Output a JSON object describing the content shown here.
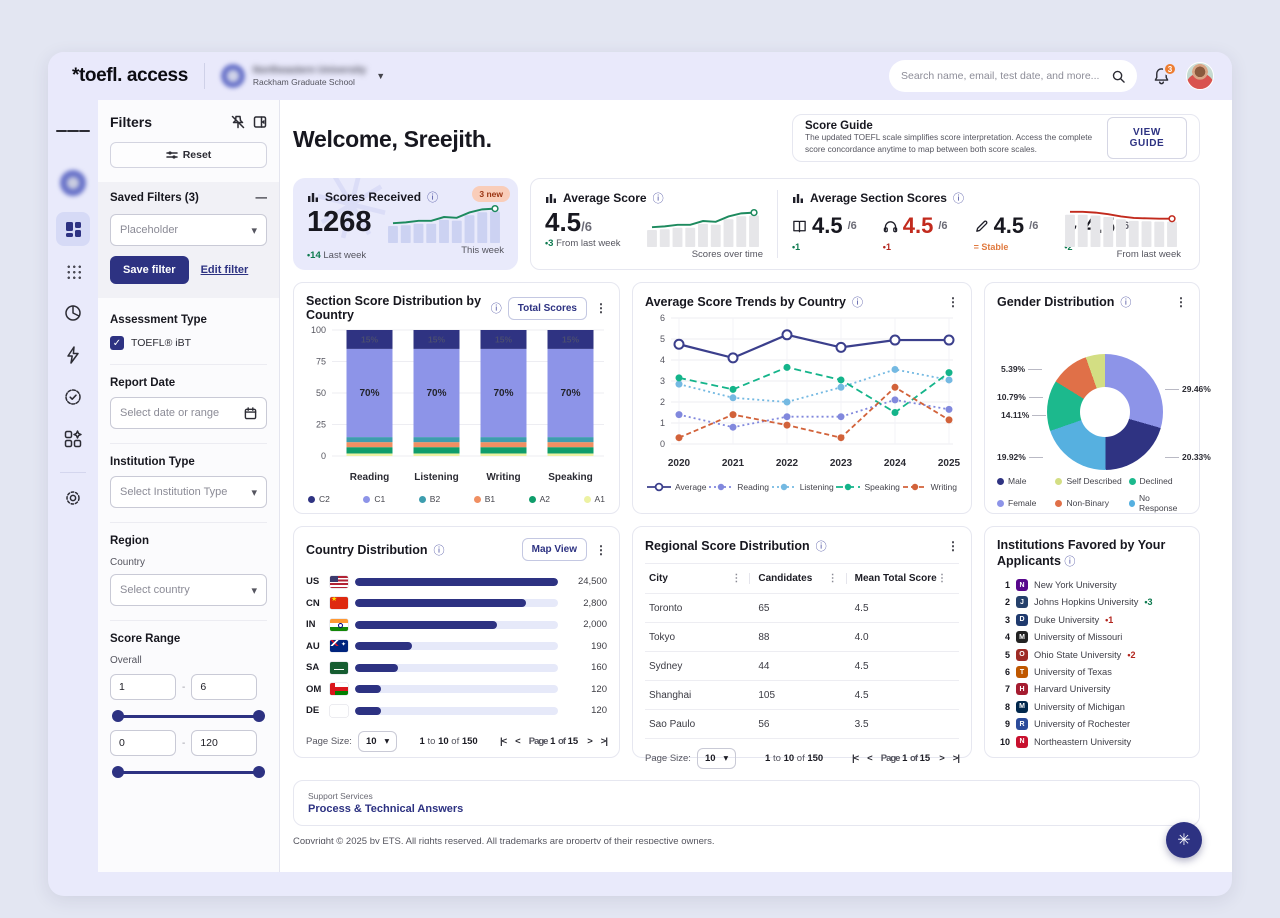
{
  "app": {
    "logo": "*toefl. access",
    "org": {
      "name": "Northeastern University",
      "subtitle": "Rackham Graduate School"
    },
    "search_placeholder": "Search name, email, test date, and more...",
    "notification_count": "3"
  },
  "sidebar": {
    "title": "Filters",
    "reset_label": "Reset",
    "saved_filters_label": "Saved Filters (3)",
    "saved_filter_placeholder": "Placeholder",
    "save_filter_label": "Save filter",
    "edit_filter_label": "Edit filter",
    "assessment_type_label": "Assessment Type",
    "assessment_checkbox_label": "TOEFL® iBT",
    "report_date_label": "Report Date",
    "report_date_placeholder": "Select date or range",
    "institution_type_label": "Institution Type",
    "institution_type_placeholder": "Select Institution Type",
    "region_label": "Region",
    "country_label": "Country",
    "country_placeholder": "Select country",
    "score_range_label": "Score Range",
    "overall_label": "Overall",
    "separator": "-",
    "range1": {
      "min": "1",
      "max": "6"
    },
    "range2": {
      "min": "0",
      "max": "120"
    }
  },
  "main": {
    "welcome": "Welcome, Sreejith.",
    "score_guide": {
      "title": "Score Guide",
      "description": "The updated TOEFL scale simplifies score interpretation. Access the complete score concordance anytime to map between both score scales.",
      "button": "VIEW GUIDE"
    },
    "kpis": {
      "scores_received": {
        "title": "Scores Received",
        "badge": "3 new",
        "value": "1268",
        "delta": "14",
        "delta_label": "Last week",
        "spark_label": "This week",
        "spark": [
          2.6,
          2.7,
          2.9,
          2.9,
          3.4,
          3.3,
          4.0,
          4.4,
          4.5
        ]
      },
      "average_score": {
        "title": "Average Score",
        "value": "4.5",
        "denom": "/6",
        "delta": "3",
        "delta_label": "From last week",
        "spark_label": "Scores over time",
        "spark": [
          2.6,
          2.7,
          2.9,
          2.9,
          3.4,
          3.3,
          4.0,
          4.4,
          4.5
        ]
      },
      "section_scores": {
        "title": "Average Section Scores",
        "spark_label": "From last week",
        "spark": [
          4.6,
          4.6,
          4.5,
          4.3,
          4.0,
          3.8,
          3.75,
          3.7,
          3.7
        ],
        "items": [
          {
            "icon": "book",
            "value": "4.5",
            "denom": "/6",
            "delta": "1",
            "trend": "up"
          },
          {
            "icon": "headphones",
            "value": "4.5",
            "denom": "/6",
            "delta": "1",
            "trend": "down",
            "value_red": true
          },
          {
            "icon": "pencil",
            "value": "4.5",
            "denom": "/6",
            "delta": "= Stable",
            "trend": "stable"
          },
          {
            "icon": "microphone",
            "value": "4.5",
            "denom": "/6",
            "delta": "2",
            "trend": "up"
          }
        ]
      }
    },
    "institutions": {
      "title": "Institutions Favored by Your Applicants",
      "items": [
        {
          "rank": "1",
          "name": "New York University",
          "color": "#57068c",
          "initial": "N"
        },
        {
          "rank": "2",
          "name": "Johns Hopkins University",
          "color": "#25406b",
          "initial": "J",
          "delta": "3",
          "trend": "up"
        },
        {
          "rank": "3",
          "name": "Duke University",
          "color": "#1f3a6e",
          "initial": "D",
          "delta": "1",
          "trend": "down"
        },
        {
          "rank": "4",
          "name": "University of Missouri",
          "color": "#222222",
          "initial": "M"
        },
        {
          "rank": "5",
          "name": "Ohio State University",
          "color": "#9e2b25",
          "initial": "O",
          "delta": "2",
          "trend": "down"
        },
        {
          "rank": "6",
          "name": "University of Texas",
          "color": "#bf5700",
          "initial": "T"
        },
        {
          "rank": "7",
          "name": "Harvard University",
          "color": "#a51c30",
          "initial": "H"
        },
        {
          "rank": "8",
          "name": "University of Michigan",
          "color": "#00274c",
          "initial": "M"
        },
        {
          "rank": "9",
          "name": "University of Rochester",
          "color": "#2b4b9b",
          "initial": "R"
        },
        {
          "rank": "10",
          "name": "Northeastern University",
          "color": "#c8102e",
          "initial": "N"
        }
      ]
    },
    "pagination": {
      "page_size_label": "Page Size:",
      "page_size": "10",
      "from": "1",
      "to_word": "to",
      "to": "10",
      "of_word": "of",
      "total": "150",
      "page_word": "Page",
      "page": "1",
      "pages": "15"
    },
    "footer": {
      "support": "Support Services",
      "link": "Process & Technical Answers"
    },
    "copyright": "Copyright © 2025 by ETS. All rights reserved. All trademarks are property of their respective owners."
  },
  "chart_data": [
    {
      "type": "bar",
      "stacked": true,
      "title": "Section Score Distribution by Country",
      "toggle_button": "Total Scores",
      "categories": [
        "Reading",
        "Listening",
        "Writing",
        "Speaking"
      ],
      "series": [
        {
          "name": "C2",
          "color": "#2f3382",
          "values": [
            15,
            15,
            15,
            15
          ]
        },
        {
          "name": "C1",
          "color": "#8d94e8",
          "values": [
            70,
            70,
            70,
            70
          ]
        },
        {
          "name": "B2",
          "color": "#3d9dae",
          "values": [
            4,
            4,
            4,
            4
          ]
        },
        {
          "name": "B1",
          "color": "#f08f62",
          "values": [
            4,
            4,
            4,
            4
          ]
        },
        {
          "name": "A2",
          "color": "#0f9d6b",
          "values": [
            5,
            5,
            5,
            5
          ]
        },
        {
          "name": "A1",
          "color": "#edf2a3",
          "values": [
            2,
            2,
            2,
            2
          ]
        }
      ],
      "ylim": [
        0,
        100
      ],
      "yticks": [
        0,
        25,
        50,
        75,
        100
      ],
      "label_min_pct": 10
    },
    {
      "type": "line",
      "title": "Average Score Trends by Country",
      "x": [
        "2020",
        "2021",
        "2022",
        "2023",
        "2024",
        "2025"
      ],
      "ylim": [
        0,
        6
      ],
      "yticks": [
        0,
        1,
        2,
        3,
        4,
        5,
        6
      ],
      "series": [
        {
          "name": "Average",
          "color": "#3b3f8c",
          "dash": "",
          "marker": "open",
          "values": [
            4.75,
            4.1,
            5.2,
            4.6,
            4.95,
            4.95
          ]
        },
        {
          "name": "Reading",
          "color": "#8188dd",
          "dash": "2 3",
          "marker": "fill",
          "values": [
            1.4,
            0.8,
            1.3,
            1.3,
            2.1,
            1.65
          ]
        },
        {
          "name": "Listening",
          "color": "#74b9e2",
          "dash": "2 3",
          "marker": "fill",
          "values": [
            2.85,
            2.2,
            2.0,
            2.7,
            3.55,
            3.05
          ]
        },
        {
          "name": "Speaking",
          "color": "#14b48a",
          "dash": "7 4",
          "marker": "fill",
          "values": [
            3.15,
            2.6,
            3.65,
            3.05,
            1.5,
            3.4
          ]
        },
        {
          "name": "Writing",
          "color": "#d2623a",
          "dash": "5 3",
          "marker": "fill",
          "values": [
            0.3,
            1.4,
            0.9,
            0.3,
            2.7,
            1.15
          ]
        }
      ]
    },
    {
      "type": "pie",
      "title": "Gender Distribution",
      "labels": [
        "Female",
        "Male",
        "No Response",
        "Declined",
        "Non-Binary",
        "Self Described"
      ],
      "values": [
        29.46,
        20.33,
        19.92,
        14.11,
        10.79,
        5.39
      ],
      "colors": [
        "#8d94e8",
        "#2f3382",
        "#56b0e0",
        "#1cb98d",
        "#e07048",
        "#d3de83"
      ],
      "legend": [
        {
          "label": "Male",
          "color": "#2f3382"
        },
        {
          "label": "Self Described",
          "color": "#d3de83"
        },
        {
          "label": "Declined",
          "color": "#1cb98d"
        },
        {
          "label": "Female",
          "color": "#8d94e8"
        },
        {
          "label": "Non-Binary",
          "color": "#e07048"
        },
        {
          "label": "No Response",
          "color": "#56b0e0"
        }
      ],
      "callouts_left": [
        "5.39%",
        "10.79%",
        "14.11%",
        "19.92%"
      ],
      "callouts_right": [
        "29.46%",
        "20.33%"
      ]
    },
    {
      "type": "bar",
      "orientation": "horizontal",
      "title": "Country Distribution",
      "toggle_button": "Map View",
      "rows": [
        {
          "code": "US",
          "value": "24,500",
          "pct": 100
        },
        {
          "code": "CN",
          "value": "2,800",
          "pct": 84
        },
        {
          "code": "IN",
          "value": "2,000",
          "pct": 70
        },
        {
          "code": "AU",
          "value": "190",
          "pct": 28
        },
        {
          "code": "SA",
          "value": "160",
          "pct": 21
        },
        {
          "code": "OM",
          "value": "120",
          "pct": 13
        },
        {
          "code": "DE",
          "value": "120",
          "pct": 13
        }
      ]
    },
    {
      "type": "table",
      "title": "Regional Score Distribution",
      "columns": [
        "City",
        "Candidates",
        "Mean Total Score"
      ],
      "rows": [
        [
          "Toronto",
          "65",
          "4.5"
        ],
        [
          "Tokyo",
          "88",
          "4.0"
        ],
        [
          "Sydney",
          "44",
          "4.5"
        ],
        [
          "Shanghai",
          "105",
          "4.5"
        ],
        [
          "Sao Paulo",
          "56",
          "3.5"
        ]
      ]
    }
  ]
}
